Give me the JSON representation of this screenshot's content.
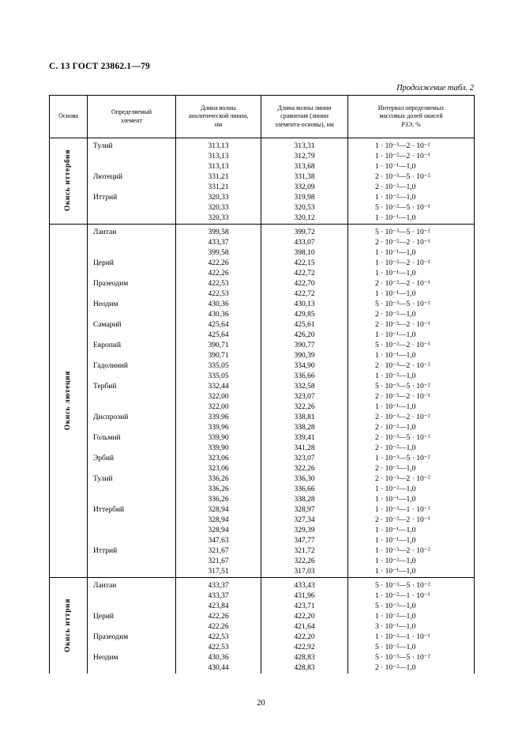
{
  "page": {
    "header": "С. 13 ГОСТ 23862.1—79",
    "continuation": "Продолжение табл. 2",
    "page_number": "20"
  },
  "table": {
    "headers": {
      "base": "Основа",
      "element": "Определяемый\nэлемент",
      "analytical": "Длина волны\nаналитической линии,\nнм",
      "comparison": "Длина волны линии\nсравнения (линии\nэлемента-основы), нм",
      "interval": "Интервал определяемых\nмассовых долей окисей\nРЗЭ, %"
    },
    "sections": [
      {
        "base": "Окись иттербия",
        "rows": [
          {
            "element": "Тулий",
            "analytical": "313,13",
            "comparison": "313,31",
            "interval": "1 · 10⁻³—2 · 10⁻²"
          },
          {
            "element": "",
            "analytical": "313,13",
            "comparison": "312,79",
            "interval": "1 · 10⁻²—2 · 10⁻¹"
          },
          {
            "element": "",
            "analytical": "313,13",
            "comparison": "313,68",
            "interval": "1 · 10⁻¹—1,0"
          },
          {
            "element": "Лютеций",
            "analytical": "331,21",
            "comparison": "331,38",
            "interval": "2 · 10⁻³—5 · 10⁻²"
          },
          {
            "element": "",
            "analytical": "331,21",
            "comparison": "332,09",
            "interval": "2 · 10⁻²—1,0"
          },
          {
            "element": "Иттрий",
            "analytical": "320,33",
            "comparison": "319,98",
            "interval": "1 · 10⁻²—1,0"
          },
          {
            "element": "",
            "analytical": "320,33",
            "comparison": "320,53",
            "interval": "5 · 10⁻²—5 · 10⁻¹"
          },
          {
            "element": "",
            "analytical": "320,33",
            "comparison": "320,12",
            "interval": "1 · 10⁻¹—1,0"
          }
        ]
      },
      {
        "base": "Окись лютеция",
        "rows": [
          {
            "element": "Лантан",
            "analytical": "399,58",
            "comparison": "399,72",
            "interval": "5 · 10⁻³—5 · 10⁻²"
          },
          {
            "element": "",
            "analytical": "433,37",
            "comparison": "433,07",
            "interval": "2 · 10⁻²—2 · 10⁻¹"
          },
          {
            "element": "",
            "analytical": "399,58",
            "comparison": "398,10",
            "interval": "1 · 10⁻¹—1,0"
          },
          {
            "element": "Церий",
            "analytical": "422,26",
            "comparison": "422,15",
            "interval": "1 · 10⁻²—2 · 10⁻¹"
          },
          {
            "element": "",
            "analytical": "422,26",
            "comparison": "422,72",
            "interval": "1 · 10⁻¹—1,0"
          },
          {
            "element": "Празеодим",
            "analytical": "422,53",
            "comparison": "422,70",
            "interval": "2 · 10⁻²—2 · 10⁻¹"
          },
          {
            "element": "",
            "analytical": "422,53",
            "comparison": "422,72",
            "interval": "1 · 10⁻¹—1,0"
          },
          {
            "element": "Неодим",
            "analytical": "430,36",
            "comparison": "430,13",
            "interval": "5 · 10⁻³—5 · 10⁻²"
          },
          {
            "element": "",
            "analytical": "430,36",
            "comparison": "429,85",
            "interval": "2 · 10⁻²—1,0"
          },
          {
            "element": "Самарий",
            "analytical": "425,64",
            "comparison": "425,61",
            "interval": "2 · 10⁻²—2 · 10⁻¹"
          },
          {
            "element": "",
            "analytical": "425,64",
            "comparison": "426,20",
            "interval": "1 · 10⁻¹—1,0"
          },
          {
            "element": "Европий",
            "analytical": "390,71",
            "comparison": "390,77",
            "interval": "5 · 10⁻²—2 · 10⁻¹"
          },
          {
            "element": "",
            "analytical": "390,71",
            "comparison": "390,39",
            "interval": "1 · 10⁻¹—1,0"
          },
          {
            "element": "Гадолиний",
            "analytical": "335,05",
            "comparison": "334,90",
            "interval": "2 · 10⁻³—2 · 10⁻²"
          },
          {
            "element": "",
            "analytical": "335,05",
            "comparison": "336,66",
            "interval": "1 · 10⁻²—1,0"
          },
          {
            "element": "Тербий",
            "analytical": "332,44",
            "comparison": "332,58",
            "interval": "5 · 10⁻³—5 · 10⁻²"
          },
          {
            "element": "",
            "analytical": "322,00",
            "comparison": "323,07",
            "interval": "2 · 10⁻²—2 · 10⁻¹"
          },
          {
            "element": "",
            "analytical": "322,00",
            "comparison": "322,26",
            "interval": "1 · 10⁻¹—1,0"
          },
          {
            "element": "Диспрозий",
            "analytical": "339,96",
            "comparison": "338,81",
            "interval": "2 · 10⁻³—2 · 10⁻²"
          },
          {
            "element": "",
            "analytical": "339,96",
            "comparison": "338,28",
            "interval": "2 · 10⁻²—1,0"
          },
          {
            "element": "Гольмий",
            "analytical": "339,90",
            "comparison": "339,41",
            "interval": "2 · 10⁻³—5 · 10⁻²"
          },
          {
            "element": "",
            "analytical": "339,90",
            "comparison": "341,28",
            "interval": "2 · 10⁻²—1,0"
          },
          {
            "element": "Эрбий",
            "analytical": "323,06",
            "comparison": "323,07",
            "interval": "1 · 10⁻³—5 · 10⁻²"
          },
          {
            "element": "",
            "analytical": "323,06",
            "comparison": "322,26",
            "interval": "2 · 10⁻²—1,0"
          },
          {
            "element": "Тулий",
            "analytical": "336,26",
            "comparison": "336,30",
            "interval": "2 · 10⁻³—2 · 10⁻²"
          },
          {
            "element": "",
            "analytical": "336,26",
            "comparison": "336,66",
            "interval": "1 · 10⁻²—1,0"
          },
          {
            "element": "",
            "analytical": "336,26",
            "comparison": "338,28",
            "interval": "1 · 10⁻¹—1,0"
          },
          {
            "element": "Иттербий",
            "analytical": "328,94",
            "comparison": "328,97",
            "interval": "1 · 10⁻³—1 · 10⁻²"
          },
          {
            "element": "",
            "analytical": "328,94",
            "comparison": "327,34",
            "interval": "2 · 10⁻²—2 · 10⁻¹"
          },
          {
            "element": "",
            "analytical": "328,94",
            "comparison": "329,39",
            "interval": "1 · 10⁻¹—1,0"
          },
          {
            "element": "",
            "analytical": "347,63",
            "comparison": "347,77",
            "interval": "1 · 10⁻¹—1,0"
          },
          {
            "element": "Иттрий",
            "analytical": "321,67",
            "comparison": "321,72",
            "interval": "1 · 10⁻³—2 · 10⁻²"
          },
          {
            "element": "",
            "analytical": "321,67",
            "comparison": "322,26",
            "interval": "1 · 10⁻²—1,0"
          },
          {
            "element": "",
            "analytical": "317,51",
            "comparison": "317,03",
            "interval": "1 · 10⁻¹—1,0"
          }
        ]
      },
      {
        "base": "Окись иттрия",
        "rows": [
          {
            "element": "Лантан",
            "analytical": "433,37",
            "comparison": "433,43",
            "interval": "5 · 10⁻³—5 · 10⁻²"
          },
          {
            "element": "",
            "analytical": "433,37",
            "comparison": "431,96",
            "interval": "1 · 10⁻²—1 · 10⁻¹"
          },
          {
            "element": "",
            "analytical": "423,84",
            "comparison": "423,71",
            "interval": "5 · 10⁻²—1,0"
          },
          {
            "element": "Церий",
            "analytical": "422,26",
            "comparison": "422,20",
            "interval": "1 · 10⁻²—1,0"
          },
          {
            "element": "",
            "analytical": "422,26",
            "comparison": "421,64",
            "interval": "3 · 10⁻¹—1,0"
          },
          {
            "element": "Празеодим",
            "analytical": "422,53",
            "comparison": "422,20",
            "interval": "1 · 10⁻²—1 · 10⁻¹"
          },
          {
            "element": "",
            "analytical": "422,53",
            "comparison": "422,92",
            "interval": "5 · 10⁻²—1,0"
          },
          {
            "element": "Неодим",
            "analytical": "430,36",
            "comparison": "428,83",
            "interval": "5 · 10⁻³—5 · 10⁻²"
          },
          {
            "element": "",
            "analytical": "430,44",
            "comparison": "428,83",
            "interval": "2 · 10⁻²—1,0"
          }
        ]
      }
    ]
  }
}
